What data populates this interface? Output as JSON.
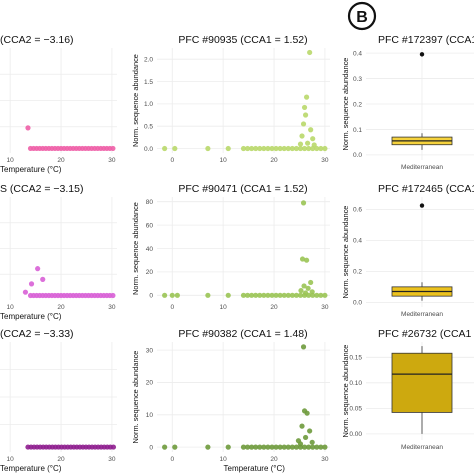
{
  "figure": {
    "panel_letter": "B"
  },
  "chart_data": [
    {
      "type": "scatter",
      "title": "(CCA2 = −3.16)",
      "xlabel": "Temperature (°C)",
      "ylabel": "",
      "xticks": [
        "10",
        "20",
        "30"
      ],
      "yticks": [],
      "xlim": [
        8,
        31
      ],
      "ylim": [
        -0.1,
        2.2
      ],
      "color": "#ee5fa7",
      "points": [
        {
          "x": 13.5,
          "y": 0.45
        },
        {
          "x": 14.0,
          "y": 0.0
        },
        {
          "x": 14.6,
          "y": 0.0
        },
        {
          "x": 15.2,
          "y": 0.0
        },
        {
          "x": 15.8,
          "y": 0.0
        },
        {
          "x": 16.4,
          "y": 0.0
        },
        {
          "x": 17.0,
          "y": 0.0
        },
        {
          "x": 17.6,
          "y": 0.0
        },
        {
          "x": 18.2,
          "y": 0.0
        },
        {
          "x": 18.8,
          "y": 0.0
        },
        {
          "x": 19.4,
          "y": 0.0
        },
        {
          "x": 20.0,
          "y": 0.0
        },
        {
          "x": 20.6,
          "y": 0.0
        },
        {
          "x": 21.2,
          "y": 0.0
        },
        {
          "x": 21.8,
          "y": 0.0
        },
        {
          "x": 22.4,
          "y": 0.0
        },
        {
          "x": 23.0,
          "y": 0.0
        },
        {
          "x": 23.6,
          "y": 0.0
        },
        {
          "x": 24.2,
          "y": 0.0
        },
        {
          "x": 24.8,
          "y": 0.0
        },
        {
          "x": 25.4,
          "y": 0.0
        },
        {
          "x": 26.0,
          "y": 0.0
        },
        {
          "x": 26.6,
          "y": 0.0
        },
        {
          "x": 27.2,
          "y": 0.0
        },
        {
          "x": 27.8,
          "y": 0.0
        },
        {
          "x": 28.4,
          "y": 0.0
        },
        {
          "x": 29.0,
          "y": 0.0
        },
        {
          "x": 29.6,
          "y": 0.0
        },
        {
          "x": 30.2,
          "y": 0.0
        }
      ]
    },
    {
      "type": "scatter",
      "title": "PFC #90935 (CCA1 = 1.52)",
      "xlabel": "",
      "ylabel": "Norm. sequence abundance",
      "xticks": [
        "0",
        "10",
        "20",
        "30"
      ],
      "yticks": [
        "0.0",
        "0.5",
        "1.0",
        "1.5",
        "2.0"
      ],
      "xlim": [
        -3,
        31
      ],
      "ylim": [
        -0.1,
        2.25
      ],
      "color": "#b9d86a",
      "points": [
        {
          "x": -1.5,
          "y": 0.0
        },
        {
          "x": 0.5,
          "y": 0.0
        },
        {
          "x": 7.0,
          "y": 0.0
        },
        {
          "x": 11.0,
          "y": 0.0
        },
        {
          "x": 14.0,
          "y": 0.0
        },
        {
          "x": 14.8,
          "y": 0.0
        },
        {
          "x": 15.6,
          "y": 0.0
        },
        {
          "x": 16.4,
          "y": 0.0
        },
        {
          "x": 17.2,
          "y": 0.0
        },
        {
          "x": 18.0,
          "y": 0.0
        },
        {
          "x": 18.8,
          "y": 0.0
        },
        {
          "x": 19.6,
          "y": 0.0
        },
        {
          "x": 20.4,
          "y": 0.0
        },
        {
          "x": 21.2,
          "y": 0.0
        },
        {
          "x": 22.0,
          "y": 0.0
        },
        {
          "x": 22.8,
          "y": 0.0
        },
        {
          "x": 23.6,
          "y": 0.0
        },
        {
          "x": 24.4,
          "y": 0.0
        },
        {
          "x": 25.2,
          "y": 0.0
        },
        {
          "x": 26.0,
          "y": 0.0
        },
        {
          "x": 26.8,
          "y": 0.0
        },
        {
          "x": 27.6,
          "y": 0.0
        },
        {
          "x": 28.4,
          "y": 0.0
        },
        {
          "x": 29.2,
          "y": 0.0
        },
        {
          "x": 30.0,
          "y": 0.0
        },
        {
          "x": 27.0,
          "y": 2.15
        },
        {
          "x": 26.4,
          "y": 1.15
        },
        {
          "x": 26.0,
          "y": 0.92
        },
        {
          "x": 26.2,
          "y": 0.75
        },
        {
          "x": 25.8,
          "y": 0.55
        },
        {
          "x": 27.2,
          "y": 0.42
        },
        {
          "x": 25.5,
          "y": 0.28
        },
        {
          "x": 27.6,
          "y": 0.22
        },
        {
          "x": 26.6,
          "y": 0.12
        },
        {
          "x": 25.2,
          "y": 0.1
        },
        {
          "x": 27.9,
          "y": 0.08
        }
      ]
    },
    {
      "type": "box",
      "title": "PFC #172397 (CCA1",
      "xlabel": "",
      "ylabel": "Norm. sequence abundance",
      "categories": [
        "Mediterranean"
      ],
      "yticks": [
        "0.0",
        "0.1",
        "0.2",
        "0.3",
        "0.4"
      ],
      "ylim": [
        -0.02,
        0.42
      ],
      "box": {
        "min": 0.02,
        "q1": 0.04,
        "median": 0.055,
        "q3": 0.07,
        "max": 0.085
      },
      "outliers": [
        0.395
      ],
      "color": "#f5d23c"
    },
    {
      "type": "scatter",
      "title": "S (CCA2 = −3.15)",
      "xlabel": "Temperature (°C)",
      "ylabel": "",
      "xticks": [
        "10",
        "20",
        "30"
      ],
      "yticks": [],
      "xlim": [
        8,
        31
      ],
      "ylim": [
        -2,
        44
      ],
      "color": "#d861d6",
      "points": [
        {
          "x": 13.0,
          "y": 1.5
        },
        {
          "x": 14.2,
          "y": 5.2
        },
        {
          "x": 15.4,
          "y": 12.0
        },
        {
          "x": 16.4,
          "y": 7.2
        },
        {
          "x": 14.0,
          "y": 0.0
        },
        {
          "x": 14.6,
          "y": 0.0
        },
        {
          "x": 15.2,
          "y": 0.0
        },
        {
          "x": 15.8,
          "y": 0.0
        },
        {
          "x": 16.4,
          "y": 0.0
        },
        {
          "x": 17.0,
          "y": 0.0
        },
        {
          "x": 17.6,
          "y": 0.0
        },
        {
          "x": 18.2,
          "y": 0.0
        },
        {
          "x": 18.8,
          "y": 0.0
        },
        {
          "x": 19.4,
          "y": 0.0
        },
        {
          "x": 20.0,
          "y": 0.0
        },
        {
          "x": 20.6,
          "y": 0.0
        },
        {
          "x": 21.2,
          "y": 0.0
        },
        {
          "x": 21.8,
          "y": 0.0
        },
        {
          "x": 22.4,
          "y": 0.0
        },
        {
          "x": 23.0,
          "y": 0.0
        },
        {
          "x": 23.6,
          "y": 0.0
        },
        {
          "x": 24.2,
          "y": 0.0
        },
        {
          "x": 24.8,
          "y": 0.0
        },
        {
          "x": 25.4,
          "y": 0.0
        },
        {
          "x": 26.0,
          "y": 0.0
        },
        {
          "x": 26.6,
          "y": 0.0
        },
        {
          "x": 27.2,
          "y": 0.0
        },
        {
          "x": 27.8,
          "y": 0.0
        },
        {
          "x": 28.4,
          "y": 0.0
        },
        {
          "x": 29.0,
          "y": 0.0
        },
        {
          "x": 29.6,
          "y": 0.0
        },
        {
          "x": 30.2,
          "y": 0.0
        }
      ]
    },
    {
      "type": "scatter",
      "title": "PFC #90471 (CCA1 = 1.52)",
      "xlabel": "",
      "ylabel": "Norm. sequence abundance",
      "xticks": [
        "0",
        "10",
        "20",
        "30"
      ],
      "yticks": [
        "0",
        "20",
        "40",
        "60",
        "80"
      ],
      "xlim": [
        -3,
        31
      ],
      "ylim": [
        -4,
        84
      ],
      "color": "#9ac454",
      "points": [
        {
          "x": -1.5,
          "y": 0.0
        },
        {
          "x": 0.0,
          "y": 0.0
        },
        {
          "x": 1.0,
          "y": 0.0
        },
        {
          "x": 7.0,
          "y": 0.0
        },
        {
          "x": 11.0,
          "y": 0.0
        },
        {
          "x": 14.0,
          "y": 0.0
        },
        {
          "x": 14.8,
          "y": 0.0
        },
        {
          "x": 15.6,
          "y": 0.0
        },
        {
          "x": 16.4,
          "y": 0.0
        },
        {
          "x": 17.2,
          "y": 0.0
        },
        {
          "x": 18.0,
          "y": 0.0
        },
        {
          "x": 18.8,
          "y": 0.0
        },
        {
          "x": 19.6,
          "y": 0.0
        },
        {
          "x": 20.4,
          "y": 0.0
        },
        {
          "x": 21.2,
          "y": 0.0
        },
        {
          "x": 22.0,
          "y": 0.0
        },
        {
          "x": 22.8,
          "y": 0.0
        },
        {
          "x": 23.6,
          "y": 0.0
        },
        {
          "x": 24.4,
          "y": 0.0
        },
        {
          "x": 25.2,
          "y": 0.0
        },
        {
          "x": 26.0,
          "y": 0.0
        },
        {
          "x": 26.8,
          "y": 0.0
        },
        {
          "x": 27.6,
          "y": 0.0
        },
        {
          "x": 28.4,
          "y": 0.0
        },
        {
          "x": 29.2,
          "y": 0.0
        },
        {
          "x": 30.0,
          "y": 0.0
        },
        {
          "x": 25.8,
          "y": 79.0
        },
        {
          "x": 25.6,
          "y": 31.0
        },
        {
          "x": 26.4,
          "y": 30.0
        },
        {
          "x": 27.2,
          "y": 11.0
        },
        {
          "x": 25.9,
          "y": 8.0
        },
        {
          "x": 26.7,
          "y": 6.0
        },
        {
          "x": 25.3,
          "y": 4.0
        },
        {
          "x": 27.5,
          "y": 3.0
        },
        {
          "x": 26.2,
          "y": 2.0
        }
      ]
    },
    {
      "type": "box",
      "title": "PFC #172465 (CCA1",
      "xlabel": "",
      "ylabel": "Norm. sequence abundance",
      "categories": [
        "Mediterranean"
      ],
      "yticks": [
        "0.0",
        "0.2",
        "0.4",
        "0.6"
      ],
      "ylim": [
        -0.03,
        0.68
      ],
      "box": {
        "min": 0.01,
        "q1": 0.04,
        "median": 0.07,
        "q3": 0.1,
        "max": 0.13
      },
      "outliers": [
        0.625
      ],
      "color": "#ecc21e"
    },
    {
      "type": "scatter",
      "title": "(CCA2 = −3.33)",
      "xlabel": "Temperature (°C)",
      "ylabel": "",
      "xticks": [
        "10",
        "20",
        "30"
      ],
      "yticks": [],
      "xlim": [
        8,
        31
      ],
      "ylim": [
        -1.5,
        32
      ],
      "color": "#8f1f8f",
      "points": [
        {
          "x": 13.5,
          "y": 0.0
        },
        {
          "x": 14.1,
          "y": 0.0
        },
        {
          "x": 14.7,
          "y": 0.0
        },
        {
          "x": 15.3,
          "y": 0.0
        },
        {
          "x": 15.9,
          "y": 0.0
        },
        {
          "x": 16.5,
          "y": 0.0
        },
        {
          "x": 17.1,
          "y": 0.0
        },
        {
          "x": 17.7,
          "y": 0.0
        },
        {
          "x": 18.3,
          "y": 0.0
        },
        {
          "x": 18.9,
          "y": 0.0
        },
        {
          "x": 19.5,
          "y": 0.0
        },
        {
          "x": 20.1,
          "y": 0.0
        },
        {
          "x": 20.7,
          "y": 0.0
        },
        {
          "x": 21.3,
          "y": 0.0
        },
        {
          "x": 21.9,
          "y": 0.0
        },
        {
          "x": 22.5,
          "y": 0.0
        },
        {
          "x": 23.1,
          "y": 0.0
        },
        {
          "x": 23.7,
          "y": 0.0
        },
        {
          "x": 24.3,
          "y": 0.0
        },
        {
          "x": 24.9,
          "y": 0.0
        },
        {
          "x": 25.5,
          "y": 0.0
        },
        {
          "x": 26.1,
          "y": 0.0
        },
        {
          "x": 26.7,
          "y": 0.0
        },
        {
          "x": 27.3,
          "y": 0.0
        },
        {
          "x": 27.9,
          "y": 0.0
        },
        {
          "x": 28.5,
          "y": 0.0
        },
        {
          "x": 29.1,
          "y": 0.0
        },
        {
          "x": 29.7,
          "y": 0.0
        },
        {
          "x": 30.3,
          "y": 0.0
        }
      ]
    },
    {
      "type": "scatter",
      "title": "PFC #90382 (CCA1 = 1.48)",
      "xlabel": "Temperature (°C)",
      "ylabel": "Norm. sequence abundance",
      "xticks": [
        "0",
        "10",
        "20",
        "30"
      ],
      "yticks": [
        "0",
        "10",
        "20",
        "30"
      ],
      "xlim": [
        -3,
        31
      ],
      "ylim": [
        -1.5,
        32.5
      ],
      "color": "#6e9a3c",
      "points": [
        {
          "x": -1.5,
          "y": 0.0
        },
        {
          "x": 0.5,
          "y": 0.0
        },
        {
          "x": 7.0,
          "y": 0.0
        },
        {
          "x": 11.0,
          "y": 0.0
        },
        {
          "x": 14.0,
          "y": 0.0
        },
        {
          "x": 14.8,
          "y": 0.0
        },
        {
          "x": 15.6,
          "y": 0.0
        },
        {
          "x": 16.4,
          "y": 0.0
        },
        {
          "x": 17.2,
          "y": 0.0
        },
        {
          "x": 18.0,
          "y": 0.0
        },
        {
          "x": 18.8,
          "y": 0.0
        },
        {
          "x": 19.6,
          "y": 0.0
        },
        {
          "x": 20.4,
          "y": 0.0
        },
        {
          "x": 21.2,
          "y": 0.0
        },
        {
          "x": 22.0,
          "y": 0.0
        },
        {
          "x": 22.8,
          "y": 0.0
        },
        {
          "x": 23.6,
          "y": 0.0
        },
        {
          "x": 24.4,
          "y": 0.0
        },
        {
          "x": 25.2,
          "y": 0.0
        },
        {
          "x": 26.0,
          "y": 0.0
        },
        {
          "x": 26.8,
          "y": 0.0
        },
        {
          "x": 27.6,
          "y": 0.0
        },
        {
          "x": 28.4,
          "y": 0.0
        },
        {
          "x": 29.2,
          "y": 0.0
        },
        {
          "x": 30.0,
          "y": 0.0
        },
        {
          "x": 25.8,
          "y": 31.0
        },
        {
          "x": 26.0,
          "y": 11.2
        },
        {
          "x": 26.5,
          "y": 10.5
        },
        {
          "x": 25.5,
          "y": 6.5
        },
        {
          "x": 27.0,
          "y": 5.0
        },
        {
          "x": 26.2,
          "y": 3.0
        },
        {
          "x": 24.8,
          "y": 2.0
        },
        {
          "x": 27.5,
          "y": 1.5
        },
        {
          "x": 25.2,
          "y": 1.0
        }
      ]
    },
    {
      "type": "box",
      "title": "PFC #26732 (CCA1",
      "xlabel": "",
      "ylabel": "Norm. sequence abundance",
      "categories": [
        "Mediterranean"
      ],
      "yticks": [
        "0.00",
        "0.05",
        "0.10",
        "0.15"
      ],
      "ylim": [
        -0.012,
        0.18
      ],
      "box": {
        "min": 0.0,
        "q1": 0.042,
        "median": 0.117,
        "q3": 0.158,
        "max": 0.172
      },
      "outliers": [],
      "color": "#cda90f"
    }
  ]
}
